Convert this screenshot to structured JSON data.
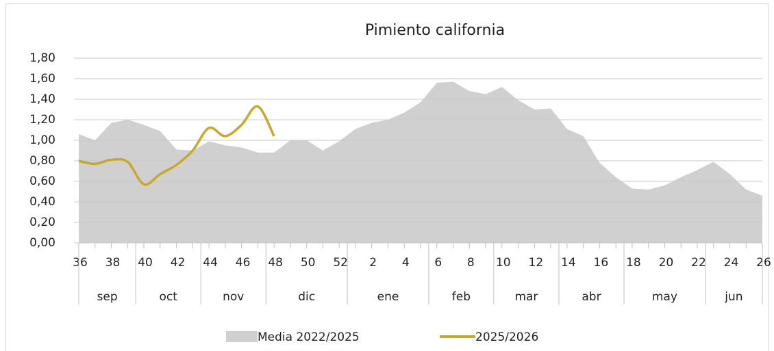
{
  "chart_data": {
    "type": "area_line",
    "title": "Pimiento california",
    "categories": [
      36,
      null,
      38,
      null,
      40,
      null,
      42,
      null,
      44,
      null,
      46,
      null,
      48,
      null,
      50,
      null,
      52,
      null,
      2,
      null,
      4,
      null,
      6,
      null,
      8,
      null,
      10,
      null,
      12,
      null,
      14,
      null,
      16,
      null,
      18,
      null,
      20,
      null,
      22,
      null,
      24,
      null,
      26
    ],
    "months": [
      {
        "label": "sep",
        "span": 4
      },
      {
        "label": "oct",
        "span": 4
      },
      {
        "label": "nov",
        "span": 4
      },
      {
        "label": "dic",
        "span": 5
      },
      {
        "label": "ene",
        "span": 5
      },
      {
        "label": "feb",
        "span": 4
      },
      {
        "label": "mar",
        "span": 4
      },
      {
        "label": "abr",
        "span": 4
      },
      {
        "label": "may",
        "span": 5
      },
      {
        "label": "jun",
        "span": 4
      }
    ],
    "series": [
      {
        "name": "Media 2022/2025",
        "kind": "area",
        "color": "#d0d0d0",
        "values": [
          1.06,
          1.0,
          1.17,
          1.2,
          1.15,
          1.09,
          0.91,
          0.9,
          0.99,
          0.95,
          0.93,
          0.88,
          0.88,
          1.0,
          1.0,
          0.9,
          0.99,
          1.11,
          1.17,
          1.2,
          1.27,
          1.37,
          1.56,
          1.57,
          1.48,
          1.45,
          1.52,
          1.39,
          1.3,
          1.31,
          1.11,
          1.04,
          0.78,
          0.64,
          0.53,
          0.52,
          0.56,
          0.64,
          0.71,
          0.79,
          0.67,
          0.52,
          0.46
        ]
      },
      {
        "name": "2025/2026",
        "kind": "line",
        "color": "#c8a82c",
        "values": [
          0.8,
          0.77,
          0.81,
          0.79,
          0.57,
          0.67,
          0.76,
          0.9,
          1.12,
          1.04,
          1.15,
          1.33,
          1.04,
          null,
          null,
          null,
          null,
          null,
          null,
          null,
          null,
          null,
          null,
          null,
          null,
          null,
          null,
          null,
          null,
          null,
          null,
          null,
          null,
          null,
          null,
          null,
          null,
          null,
          null,
          null,
          null,
          null,
          null
        ]
      }
    ],
    "ylim": [
      0,
      1.8
    ],
    "yticks": [
      {
        "value": 0,
        "label": "0,00"
      },
      {
        "value": 0.2,
        "label": "0,20"
      },
      {
        "value": 0.4,
        "label": "0,40"
      },
      {
        "value": 0.6,
        "label": "0,60"
      },
      {
        "value": 0.8,
        "label": "0,80"
      },
      {
        "value": 1.0,
        "label": "1,00"
      },
      {
        "value": 1.2,
        "label": "1,20"
      },
      {
        "value": 1.4,
        "label": "1,40"
      },
      {
        "value": 1.6,
        "label": "1,60"
      },
      {
        "value": 1.8,
        "label": "1,80"
      }
    ],
    "grid": true,
    "legend": "bottom"
  }
}
